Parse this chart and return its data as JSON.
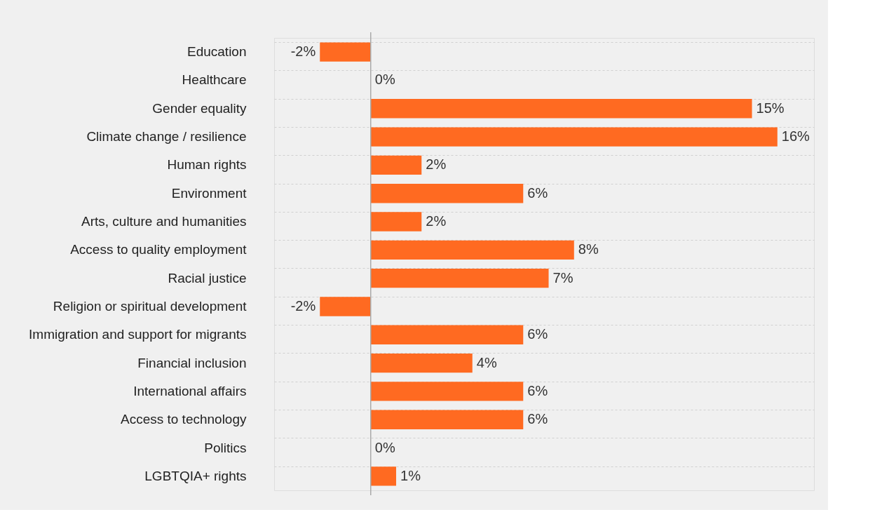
{
  "chart_data": {
    "type": "bar",
    "orientation": "horizontal",
    "categories": [
      "Education",
      "Healthcare",
      "Gender equality",
      "Climate change / resilience",
      "Human rights",
      "Environment",
      "Arts, culture and humanities",
      "Access to quality employment",
      "Racial justice",
      "Religion or spiritual development",
      "Immigration and support for migrants",
      "Financial inclusion",
      "International affairs",
      "Access to technology",
      "Politics",
      "LGBTQIA+ rights"
    ],
    "values": [
      -2,
      0,
      15,
      16,
      2,
      6,
      2,
      8,
      7,
      -2,
      6,
      4,
      6,
      6,
      0,
      1
    ],
    "value_labels": [
      "-2%",
      "0%",
      "15%",
      "16%",
      "2%",
      "6%",
      "2%",
      "8%",
      "7%",
      "-2%",
      "6%",
      "4%",
      "6%",
      "6%",
      "0%",
      "1%"
    ],
    "color": "#ff6a21",
    "grid": "y"
  }
}
